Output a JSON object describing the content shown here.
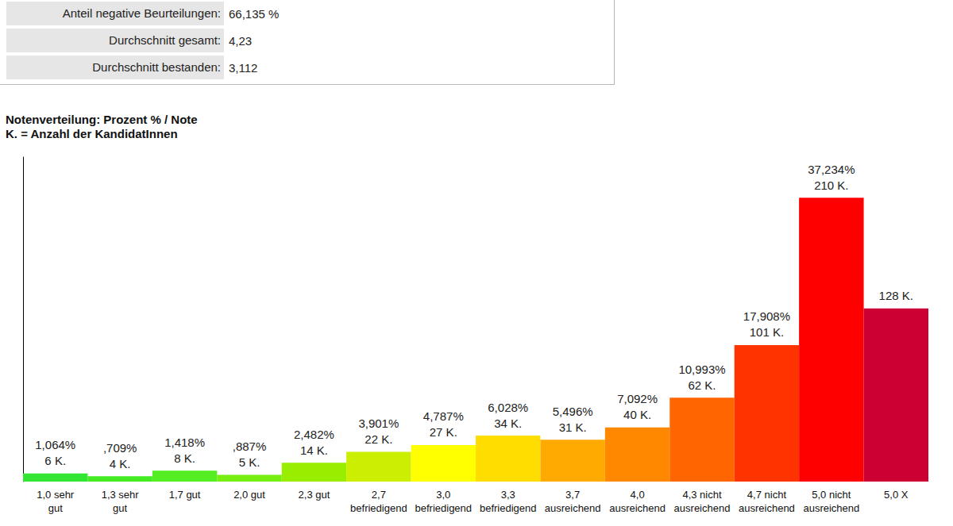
{
  "summary": {
    "rows": [
      {
        "label": "Anteil negative Beurteilungen:",
        "value": "66,135 %"
      },
      {
        "label": "Durchschnitt gesamt:",
        "value": "4,23"
      },
      {
        "label": "Durchschnitt bestanden:",
        "value": "3,112"
      }
    ]
  },
  "chart_data": {
    "type": "bar",
    "title": "Notenverteilung: Prozent % / Note",
    "subtitle": "K. = Anzahl der KandidatInnen",
    "categories": [
      "1,0 sehr\ngut",
      "1,3 sehr\ngut",
      "1,7 gut",
      "2,0 gut",
      "2,3 gut",
      "2,7\nbefriedigend",
      "3,0\nbefriedigend",
      "3,3\nbefriedigend",
      "3,7\nausreichend",
      "4,0\nausreichend",
      "4,3 nicht\nausreichend",
      "4,7 nicht\nausreichend",
      "5,0 nicht\nausreichend",
      "5,0 X"
    ],
    "values": [
      6,
      4,
      8,
      5,
      14,
      22,
      27,
      34,
      31,
      40,
      62,
      101,
      210,
      128
    ],
    "value_labels": [
      "6 K.",
      "4 K.",
      "8 K.",
      "5 K.",
      "14 K.",
      "22 K.",
      "27 K.",
      "34 K.",
      "31 K.",
      "40 K.",
      "62 K.",
      "101 K.",
      "210 K.",
      "128 K."
    ],
    "percent_labels": [
      "1,064%",
      ",709%",
      "1,418%",
      ",887%",
      "2,482%",
      "3,901%",
      "4,787%",
      "6,028%",
      "5,496%",
      "7,092%",
      "10,993%",
      "17,908%",
      "37,234%",
      null
    ],
    "colors": [
      "#33e633",
      "#44ea22",
      "#55ee22",
      "#77ee11",
      "#99ee00",
      "#ccee00",
      "#ffff00",
      "#ffdd00",
      "#ffaa00",
      "#ff8800",
      "#ff6600",
      "#ff3300",
      "#ff0000",
      "#cc0033"
    ],
    "ylim": [
      0,
      240
    ],
    "grid": false,
    "data_labels": true,
    "tick_labels": "x"
  }
}
